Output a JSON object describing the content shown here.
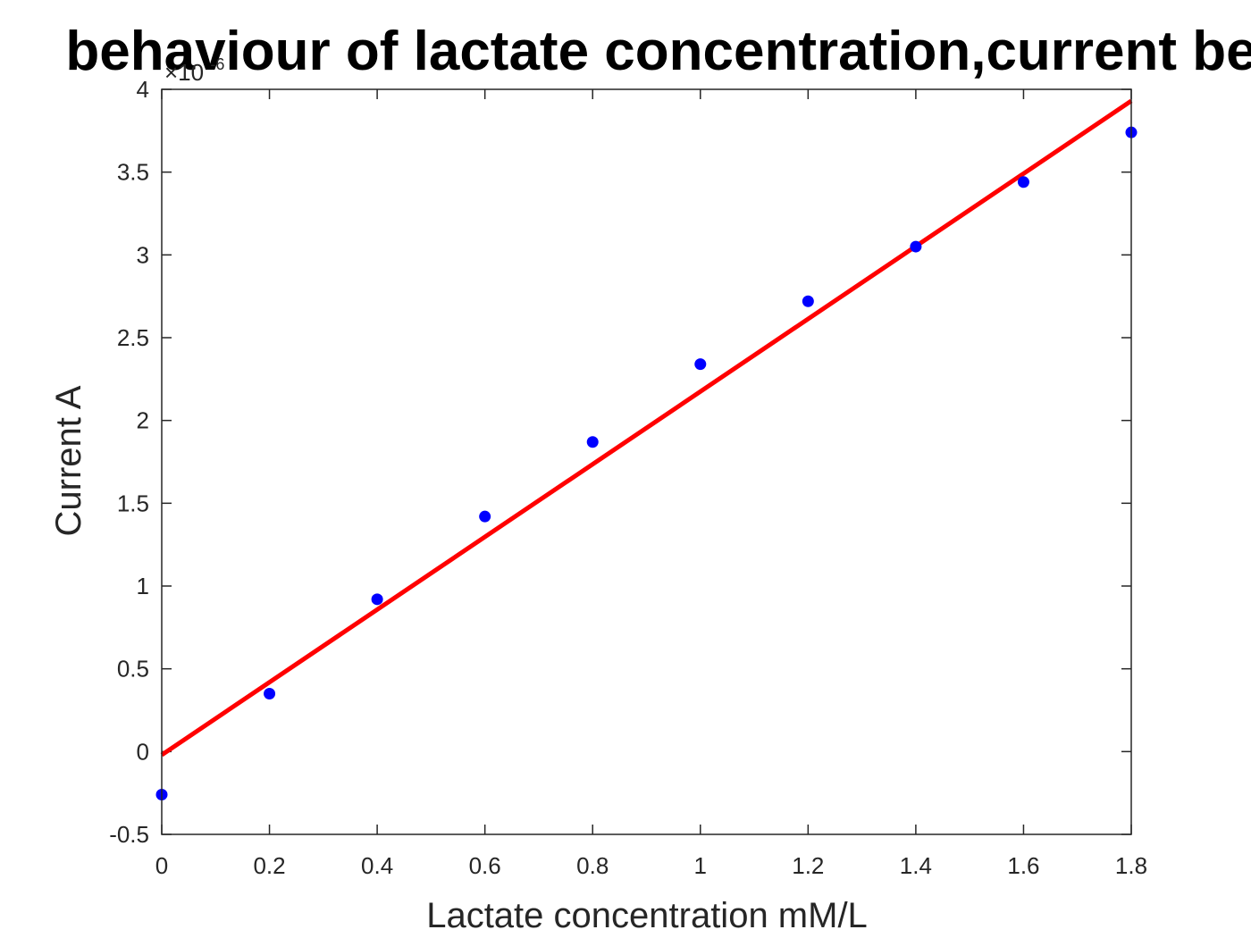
{
  "chart_data": {
    "type": "scatter",
    "title": "behaviour of lactate concentration,current be",
    "xlabel": "Lactate concentration mM/L",
    "ylabel": "Current A",
    "y_multiplier_label": "×10",
    "y_multiplier_exponent": "-6",
    "xlim": [
      0,
      1.8
    ],
    "ylim": [
      -0.5,
      4
    ],
    "x_ticks": [
      "0",
      "0.2",
      "0.4",
      "0.6",
      "0.8",
      "1",
      "1.2",
      "1.4",
      "1.6",
      "1.8"
    ],
    "y_ticks": [
      "-0.5",
      "0",
      "0.5",
      "1",
      "1.5",
      "2",
      "2.5",
      "3",
      "3.5",
      "4"
    ],
    "x_tick_values": [
      0,
      0.2,
      0.4,
      0.6,
      0.8,
      1.0,
      1.2,
      1.4,
      1.6,
      1.8
    ],
    "y_tick_values": [
      -0.5,
      0,
      0.5,
      1,
      1.5,
      2,
      2.5,
      3,
      3.5,
      4
    ],
    "grid": false,
    "series": [
      {
        "type": "scatter",
        "color": "#0000ff",
        "x": [
          0,
          0.2,
          0.4,
          0.6,
          0.8,
          1.0,
          1.2,
          1.4,
          1.6,
          1.8
        ],
        "y": [
          -0.26,
          0.35,
          0.92,
          1.42,
          1.87,
          2.34,
          2.72,
          3.05,
          3.44,
          3.74
        ]
      },
      {
        "type": "line",
        "color": "#ff0000",
        "x": [
          0,
          1.8
        ],
        "y": [
          -0.02,
          3.93
        ]
      }
    ]
  }
}
